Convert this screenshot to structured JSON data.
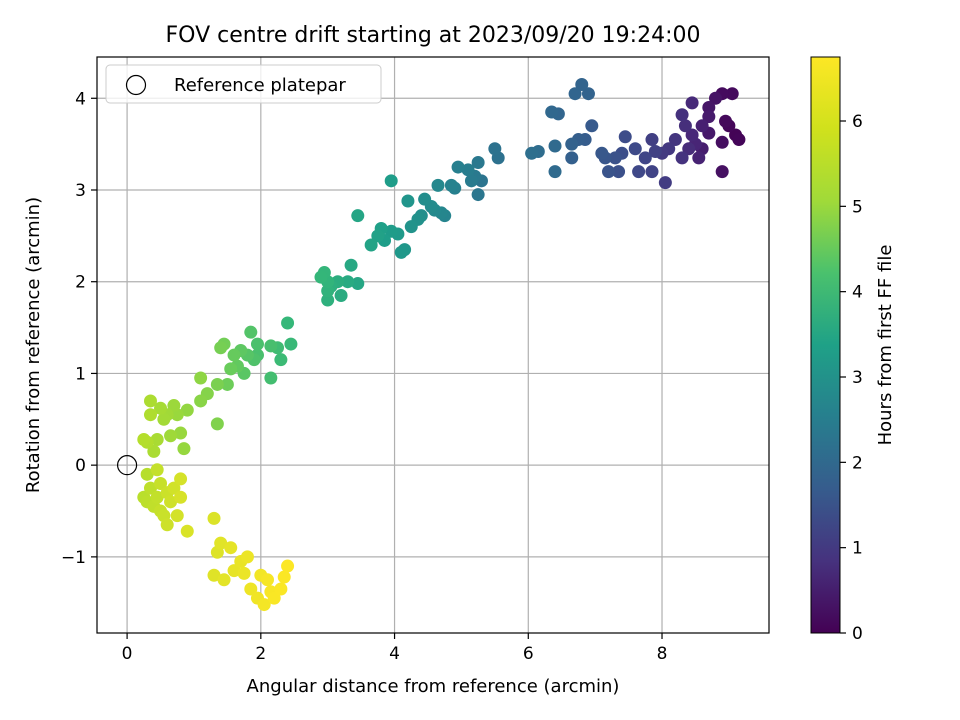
{
  "chart_data": {
    "type": "scatter",
    "title": "FOV centre drift starting at 2023/09/20 19:24:00",
    "xlabel": "Angular distance from reference (arcmin)",
    "ylabel": "Rotation from reference (arcmin)",
    "xlim": [
      -0.45,
      9.6
    ],
    "ylim": [
      -1.83,
      4.45
    ],
    "xticks": [
      0,
      2,
      4,
      6,
      8
    ],
    "yticks": [
      -1,
      0,
      1,
      2,
      3,
      4
    ],
    "grid": true,
    "legend": {
      "placement": "top-left",
      "entries": [
        "Reference platepar"
      ]
    },
    "reference_point": {
      "x": 0,
      "y": 0
    },
    "colorbar": {
      "label": "Hours from first FF file",
      "range": [
        0,
        6.75
      ],
      "ticks": [
        0,
        1,
        2,
        3,
        4,
        5,
        6
      ],
      "colormap": "viridis"
    },
    "series": [
      {
        "points": [
          [
            9.1,
            3.6,
            0.05
          ],
          [
            9.15,
            3.55,
            0.08
          ],
          [
            9.0,
            3.7,
            0.1
          ],
          [
            8.95,
            3.75,
            0.15
          ],
          [
            9.05,
            4.05,
            0.18
          ],
          [
            8.9,
            4.05,
            0.2
          ],
          [
            8.9,
            3.52,
            0.25
          ],
          [
            8.9,
            3.2,
            0.3
          ],
          [
            8.8,
            4.0,
            0.35
          ],
          [
            8.7,
            3.9,
            0.4
          ],
          [
            8.7,
            3.62,
            0.45
          ],
          [
            8.7,
            3.8,
            0.5
          ],
          [
            8.6,
            3.45,
            0.55
          ],
          [
            8.6,
            3.7,
            0.6
          ],
          [
            8.55,
            3.35,
            0.65
          ],
          [
            8.5,
            3.5,
            0.7
          ],
          [
            8.45,
            3.6,
            0.75
          ],
          [
            8.45,
            3.95,
            0.8
          ],
          [
            8.4,
            3.45,
            0.85
          ],
          [
            8.35,
            3.7,
            0.9
          ],
          [
            8.3,
            3.82,
            0.95
          ],
          [
            8.3,
            3.35,
            1.0
          ],
          [
            8.2,
            3.55,
            1.05
          ],
          [
            8.1,
            3.45,
            1.1
          ],
          [
            8.0,
            3.4,
            1.15
          ],
          [
            8.05,
            3.08,
            1.2
          ],
          [
            7.85,
            3.55,
            1.25
          ],
          [
            7.9,
            3.42,
            1.3
          ],
          [
            7.85,
            3.2,
            1.35
          ],
          [
            7.75,
            3.35,
            1.4
          ],
          [
            7.65,
            3.2,
            1.45
          ],
          [
            7.6,
            3.45,
            1.5
          ],
          [
            7.45,
            3.58,
            1.55
          ],
          [
            7.4,
            3.4,
            1.6
          ],
          [
            7.35,
            3.2,
            1.65
          ],
          [
            7.3,
            3.35,
            1.7
          ],
          [
            7.2,
            3.2,
            1.75
          ],
          [
            7.15,
            3.35,
            1.8
          ],
          [
            7.1,
            3.4,
            1.85
          ],
          [
            6.95,
            3.7,
            1.9
          ],
          [
            6.85,
            3.55,
            1.95
          ],
          [
            6.75,
            3.55,
            2.0
          ],
          [
            6.65,
            3.35,
            2.05
          ],
          [
            6.65,
            3.5,
            2.1
          ],
          [
            6.9,
            4.05,
            2.12
          ],
          [
            6.8,
            4.15,
            2.15
          ],
          [
            6.7,
            4.05,
            2.18
          ],
          [
            6.45,
            3.83,
            2.2
          ],
          [
            6.35,
            3.85,
            2.25
          ],
          [
            6.4,
            3.48,
            2.3
          ],
          [
            6.4,
            3.2,
            2.35
          ],
          [
            6.15,
            3.42,
            2.4
          ],
          [
            6.05,
            3.4,
            2.45
          ],
          [
            5.55,
            3.35,
            2.5
          ],
          [
            5.5,
            3.45,
            2.55
          ],
          [
            5.3,
            3.1,
            2.6
          ],
          [
            5.25,
            2.95,
            2.65
          ],
          [
            5.25,
            3.3,
            2.7
          ],
          [
            5.2,
            3.15,
            2.75
          ],
          [
            5.15,
            3.1,
            2.8
          ],
          [
            5.1,
            3.22,
            2.85
          ],
          [
            4.95,
            3.25,
            2.9
          ],
          [
            4.9,
            3.02,
            2.95
          ],
          [
            4.85,
            3.05,
            3.0
          ],
          [
            4.75,
            2.72,
            3.05
          ],
          [
            4.7,
            2.75,
            3.1
          ],
          [
            4.65,
            3.05,
            3.15
          ],
          [
            4.6,
            2.78,
            3.2
          ],
          [
            4.55,
            2.82,
            3.25
          ],
          [
            4.45,
            2.9,
            3.3
          ],
          [
            4.4,
            2.72,
            3.35
          ],
          [
            4.35,
            2.68,
            3.4
          ],
          [
            4.25,
            2.6,
            3.45
          ],
          [
            4.2,
            2.88,
            3.5
          ],
          [
            4.15,
            2.35,
            3.55
          ],
          [
            4.1,
            2.32,
            3.6
          ],
          [
            4.05,
            2.52,
            3.65
          ],
          [
            3.95,
            2.55,
            3.7
          ],
          [
            3.95,
            3.1,
            3.72
          ],
          [
            3.85,
            2.45,
            3.75
          ],
          [
            3.8,
            2.58,
            3.8
          ],
          [
            3.75,
            2.5,
            3.85
          ],
          [
            3.65,
            2.4,
            3.9
          ],
          [
            3.45,
            2.72,
            3.95
          ],
          [
            3.45,
            1.98,
            4.0
          ],
          [
            3.35,
            2.18,
            4.05
          ],
          [
            3.3,
            2.0,
            4.1
          ],
          [
            3.2,
            1.85,
            4.15
          ],
          [
            3.15,
            2.0,
            4.2
          ],
          [
            3.05,
            1.95,
            4.25
          ],
          [
            3.0,
            1.8,
            4.3
          ],
          [
            3.0,
            1.9,
            4.35
          ],
          [
            3.0,
            2.0,
            4.4
          ],
          [
            2.95,
            2.1,
            4.45
          ],
          [
            2.9,
            2.05,
            4.48
          ],
          [
            2.4,
            1.55,
            4.5
          ],
          [
            2.45,
            1.32,
            4.55
          ],
          [
            2.3,
            1.15,
            4.6
          ],
          [
            2.25,
            1.28,
            4.65
          ],
          [
            2.15,
            0.95,
            4.7
          ],
          [
            2.15,
            1.3,
            4.75
          ],
          [
            1.95,
            1.2,
            4.78
          ],
          [
            1.95,
            1.32,
            4.8
          ],
          [
            1.9,
            1.15,
            4.85
          ],
          [
            1.85,
            1.45,
            4.9
          ],
          [
            1.8,
            1.2,
            4.95
          ],
          [
            1.75,
            1.0,
            5.0
          ],
          [
            1.7,
            1.25,
            5.05
          ],
          [
            1.65,
            1.08,
            5.1
          ],
          [
            1.6,
            1.2,
            5.15
          ],
          [
            1.55,
            1.05,
            5.2
          ],
          [
            1.5,
            0.88,
            5.25
          ],
          [
            1.45,
            1.32,
            5.3
          ],
          [
            1.4,
            1.28,
            5.35
          ],
          [
            1.35,
            0.88,
            5.4
          ],
          [
            1.35,
            0.45,
            5.45
          ],
          [
            1.2,
            0.78,
            5.5
          ],
          [
            1.1,
            0.7,
            5.55
          ],
          [
            1.1,
            0.95,
            5.6
          ],
          [
            0.9,
            0.6,
            5.65
          ],
          [
            0.85,
            0.18,
            5.68
          ],
          [
            0.8,
            0.35,
            5.7
          ],
          [
            0.75,
            0.55,
            5.72
          ],
          [
            0.7,
            0.65,
            5.75
          ],
          [
            0.65,
            0.32,
            5.78
          ],
          [
            0.6,
            0.55,
            5.8
          ],
          [
            0.55,
            0.5,
            5.82
          ],
          [
            0.5,
            0.62,
            5.85
          ],
          [
            0.45,
            0.28,
            5.88
          ],
          [
            0.4,
            0.15,
            5.9
          ],
          [
            0.35,
            0.7,
            5.92
          ],
          [
            0.35,
            0.55,
            5.95
          ],
          [
            0.3,
            0.25,
            5.97
          ],
          [
            0.25,
            0.28,
            6.0
          ],
          [
            0.3,
            -0.1,
            6.02
          ],
          [
            0.25,
            -0.35,
            6.05
          ],
          [
            0.3,
            -0.4,
            6.08
          ],
          [
            0.35,
            -0.25,
            6.1
          ],
          [
            0.4,
            -0.45,
            6.12
          ],
          [
            0.45,
            -0.35,
            6.14
          ],
          [
            0.45,
            -0.05,
            6.16
          ],
          [
            0.5,
            -0.5,
            6.18
          ],
          [
            0.5,
            -0.2,
            6.2
          ],
          [
            0.55,
            -0.55,
            6.22
          ],
          [
            0.6,
            -0.3,
            6.24
          ],
          [
            0.6,
            -0.65,
            6.26
          ],
          [
            0.65,
            -0.4,
            6.28
          ],
          [
            0.7,
            -0.25,
            6.3
          ],
          [
            0.75,
            -0.55,
            6.32
          ],
          [
            0.8,
            -0.15,
            6.34
          ],
          [
            0.8,
            -0.35,
            6.36
          ],
          [
            0.9,
            -0.72,
            6.38
          ],
          [
            1.3,
            -0.58,
            6.4
          ],
          [
            1.35,
            -0.95,
            6.42
          ],
          [
            1.3,
            -1.2,
            6.44
          ],
          [
            1.4,
            -0.85,
            6.46
          ],
          [
            1.45,
            -1.25,
            6.48
          ],
          [
            1.55,
            -0.9,
            6.5
          ],
          [
            1.6,
            -1.15,
            6.52
          ],
          [
            1.7,
            -1.05,
            6.54
          ],
          [
            1.75,
            -1.18,
            6.56
          ],
          [
            1.8,
            -1.0,
            6.58
          ],
          [
            1.85,
            -1.35,
            6.6
          ],
          [
            1.95,
            -1.45,
            6.62
          ],
          [
            2.0,
            -1.2,
            6.64
          ],
          [
            2.05,
            -1.52,
            6.66
          ],
          [
            2.1,
            -1.25,
            6.68
          ],
          [
            2.15,
            -1.38,
            6.7
          ],
          [
            2.2,
            -1.45,
            6.71
          ],
          [
            2.3,
            -1.35,
            6.72
          ],
          [
            2.35,
            -1.22,
            6.73
          ],
          [
            2.4,
            -1.1,
            6.74
          ]
        ]
      }
    ]
  }
}
